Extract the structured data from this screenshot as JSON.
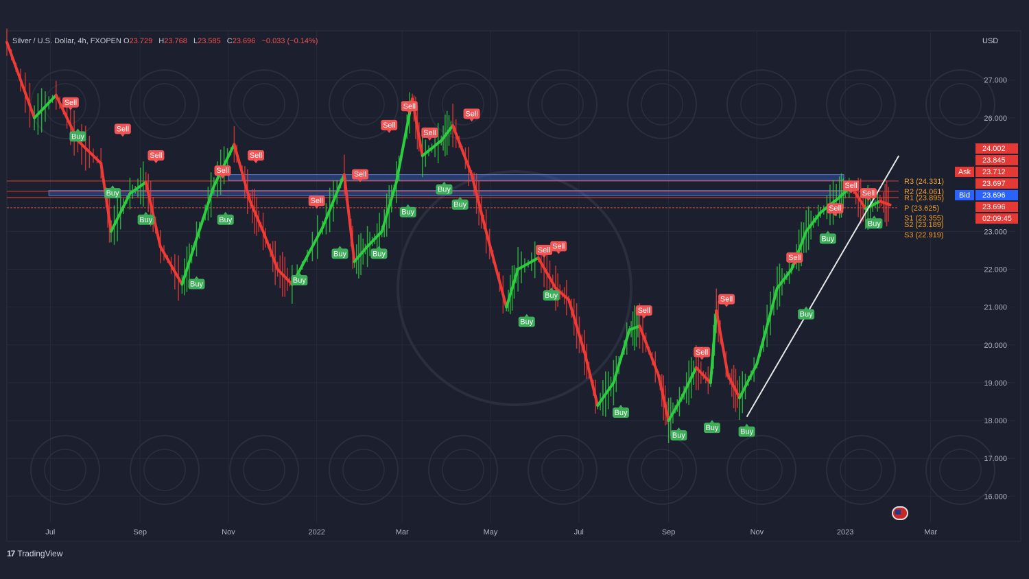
{
  "header": {
    "symbol": "Silver / U.S. Dollar, 4h, FXOPEN",
    "open_label": "O",
    "open": "23.729",
    "high_label": "H",
    "high": "23.768",
    "low_label": "L",
    "low": "23.585",
    "close_label": "C",
    "close": "23.696",
    "change": "−0.033 (−0.14%)"
  },
  "currency": "USD",
  "brand": {
    "logo": "17",
    "name": "TradingView"
  },
  "flag_icon": "us-flag-icon",
  "colors": {
    "background": "#1d2130",
    "grid": "#262b3b",
    "bull": "#2ecc40",
    "bear": "#ef3b36",
    "zone_blue": "#3a5fb8",
    "pivot": "#f0a030",
    "sell_badge": "#f05454",
    "buy_badge": "#3fae5a",
    "trendline": "#e8e8e8"
  },
  "chart_data": {
    "type": "line",
    "ylim": [
      15.3,
      28.3
    ],
    "y_ticks": [
      "27.000",
      "26.000",
      "23.000",
      "22.000",
      "21.000",
      "20.000",
      "19.000",
      "18.000",
      "17.000",
      "16.000"
    ],
    "y_tick_values": [
      27,
      26,
      23,
      22,
      21,
      20,
      19,
      18,
      17,
      16
    ],
    "x_ticks": [
      "Jul",
      "Sep",
      "Nov",
      "2022",
      "Mar",
      "May",
      "Jul",
      "Sep",
      "Nov",
      "2023",
      "Mar"
    ],
    "x_tick_dates": [
      "2021-07-01",
      "2021-09-01",
      "2021-11-01",
      "2022-01-01",
      "2022-03-01",
      "2022-05-01",
      "2022-07-01",
      "2022-09-01",
      "2022-11-01",
      "2023-01-01",
      "2023-03-01"
    ],
    "xlim": [
      "2021-06-01",
      "2023-03-31"
    ],
    "price_series": {
      "dates": [
        "2021-06-01",
        "2021-06-20",
        "2021-07-05",
        "2021-07-20",
        "2021-08-05",
        "2021-08-12",
        "2021-08-25",
        "2021-09-05",
        "2021-09-15",
        "2021-09-30",
        "2021-10-10",
        "2021-10-22",
        "2021-11-05",
        "2021-11-16",
        "2021-11-25",
        "2021-12-05",
        "2021-12-15",
        "2022-01-05",
        "2022-01-20",
        "2022-01-27",
        "2022-02-05",
        "2022-02-15",
        "2022-02-25",
        "2022-03-08",
        "2022-03-15",
        "2022-03-28",
        "2022-04-05",
        "2022-04-18",
        "2022-04-28",
        "2022-05-12",
        "2022-05-20",
        "2022-06-03",
        "2022-06-15",
        "2022-06-24",
        "2022-07-05",
        "2022-07-14",
        "2022-07-25",
        "2022-08-05",
        "2022-08-12",
        "2022-08-25",
        "2022-09-01",
        "2022-09-10",
        "2022-09-20",
        "2022-09-30",
        "2022-10-04",
        "2022-10-12",
        "2022-10-20",
        "2022-11-01",
        "2022-11-15",
        "2022-11-25",
        "2022-12-05",
        "2022-12-15",
        "2022-12-28",
        "2023-01-05",
        "2023-01-15",
        "2023-01-25",
        "2023-02-01"
      ],
      "values": [
        28.0,
        26.0,
        26.6,
        25.4,
        24.8,
        23.0,
        24.0,
        24.3,
        22.6,
        21.6,
        22.8,
        24.2,
        25.3,
        23.8,
        23.0,
        22.0,
        21.6,
        23.1,
        24.5,
        22.2,
        22.6,
        23.0,
        24.3,
        26.5,
        25.0,
        25.4,
        25.8,
        24.5,
        23.0,
        21.0,
        22.0,
        22.3,
        21.5,
        21.2,
        19.8,
        18.4,
        19.0,
        20.4,
        20.5,
        19.2,
        18.0,
        18.6,
        19.4,
        19.0,
        20.9,
        19.2,
        18.6,
        19.5,
        21.5,
        22.0,
        23.0,
        23.5,
        23.9,
        24.2,
        23.6,
        23.8,
        23.7
      ]
    },
    "zones": [
      {
        "from": "2021-11-01",
        "to": "2022-12-31",
        "low": 24.35,
        "high": 24.5
      },
      {
        "from": "2021-06-30",
        "to": "2022-12-31",
        "low": 23.95,
        "high": 24.08
      }
    ],
    "pivots": [
      {
        "label": "R3 (24.331)",
        "value": 24.331
      },
      {
        "label": "R2 (24.061)",
        "value": 24.061
      },
      {
        "label": "R1 (23.895)",
        "value": 23.895
      },
      {
        "label": "P (23.625)",
        "value": 23.625
      },
      {
        "label": "S1 (23.355)",
        "value": 23.355
      },
      {
        "label": "S2 (23.189)",
        "value": 23.189
      },
      {
        "label": "S3 (22.919)",
        "value": 22.919
      }
    ],
    "price_labels": [
      {
        "text": "24.002",
        "tag": ""
      },
      {
        "text": "23.845",
        "tag": ""
      },
      {
        "text": "23.712",
        "tag": "Ask"
      },
      {
        "text": "23.697",
        "tag": ""
      },
      {
        "text": "23.696",
        "tag": "Bid"
      },
      {
        "text": "23.696",
        "tag": ""
      },
      {
        "text": "02:09:45",
        "tag": ""
      }
    ],
    "signals": [
      {
        "label": "Sell",
        "date": "2021-07-15",
        "price": 26.4
      },
      {
        "label": "Buy",
        "date": "2021-07-20",
        "price": 25.5
      },
      {
        "label": "Sell",
        "date": "2021-08-20",
        "price": 25.7
      },
      {
        "label": "Buy",
        "date": "2021-08-13",
        "price": 24.0
      },
      {
        "label": "Sell",
        "date": "2021-09-12",
        "price": 25.0
      },
      {
        "label": "Buy",
        "date": "2021-09-05",
        "price": 23.3
      },
      {
        "label": "Buy",
        "date": "2021-10-10",
        "price": 21.6
      },
      {
        "label": "Sell",
        "date": "2021-10-28",
        "price": 24.6
      },
      {
        "label": "Buy",
        "date": "2021-10-30",
        "price": 23.3
      },
      {
        "label": "Sell",
        "date": "2021-11-20",
        "price": 25.0
      },
      {
        "label": "Buy",
        "date": "2021-12-20",
        "price": 21.7
      },
      {
        "label": "Sell",
        "date": "2022-01-01",
        "price": 23.8
      },
      {
        "label": "Buy",
        "date": "2022-01-17",
        "price": 22.4
      },
      {
        "label": "Sell",
        "date": "2022-01-31",
        "price": 24.5
      },
      {
        "label": "Buy",
        "date": "2022-02-13",
        "price": 22.4
      },
      {
        "label": "Sell",
        "date": "2022-02-20",
        "price": 25.8
      },
      {
        "label": "Sell",
        "date": "2022-03-06",
        "price": 26.3
      },
      {
        "label": "Buy",
        "date": "2022-03-05",
        "price": 23.5
      },
      {
        "label": "Sell",
        "date": "2022-03-20",
        "price": 25.6
      },
      {
        "label": "Buy",
        "date": "2022-03-30",
        "price": 24.1
      },
      {
        "label": "Sell",
        "date": "2022-04-18",
        "price": 26.1
      },
      {
        "label": "Buy",
        "date": "2022-04-10",
        "price": 23.7
      },
      {
        "label": "Sell",
        "date": "2022-06-07",
        "price": 22.5
      },
      {
        "label": "Sell",
        "date": "2022-06-17",
        "price": 22.6
      },
      {
        "label": "Buy",
        "date": "2022-06-12",
        "price": 21.3
      },
      {
        "label": "Buy",
        "date": "2022-05-26",
        "price": 20.6
      },
      {
        "label": "Sell",
        "date": "2022-08-15",
        "price": 20.9
      },
      {
        "label": "Buy",
        "date": "2022-07-30",
        "price": 18.2
      },
      {
        "label": "Sell",
        "date": "2022-09-24",
        "price": 19.8
      },
      {
        "label": "Buy",
        "date": "2022-09-08",
        "price": 17.6
      },
      {
        "label": "Buy",
        "date": "2022-10-01",
        "price": 17.8
      },
      {
        "label": "Sell",
        "date": "2022-10-11",
        "price": 21.2
      },
      {
        "label": "Buy",
        "date": "2022-10-25",
        "price": 17.7
      },
      {
        "label": "Sell",
        "date": "2022-11-27",
        "price": 22.3
      },
      {
        "label": "Buy",
        "date": "2022-12-05",
        "price": 20.8
      },
      {
        "label": "Buy",
        "date": "2022-12-20",
        "price": 22.8
      },
      {
        "label": "Sell",
        "date": "2022-12-25",
        "price": 23.6
      },
      {
        "label": "Sell",
        "date": "2023-01-05",
        "price": 24.2
      },
      {
        "label": "Sell",
        "date": "2023-01-17",
        "price": 24.0
      },
      {
        "label": "Buy",
        "date": "2023-01-21",
        "price": 23.2
      }
    ],
    "trendline": {
      "from": {
        "date": "2022-10-25",
        "price": 18.1
      },
      "to": {
        "date": "2023-02-07",
        "price": 25.0
      }
    }
  }
}
